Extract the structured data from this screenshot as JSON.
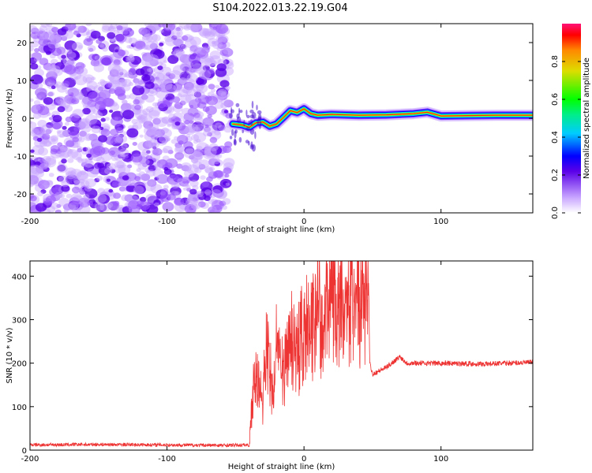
{
  "title": "S104.2022.013.22.19.G04",
  "charts": [
    {
      "type": "heatmap",
      "xlabel": "Height of straight line (km)",
      "ylabel": "Frequency (Hz)",
      "xlim": [
        -200,
        167
      ],
      "ylim": [
        -25,
        25
      ],
      "xticks": [
        -200,
        -100,
        0,
        100
      ],
      "yticks": [
        -20,
        -10,
        0,
        10,
        20
      ],
      "noise_region_x": [
        -200,
        -53
      ],
      "ridge": [
        {
          "x": -52,
          "y": -1.5
        },
        {
          "x": -45,
          "y": -1.8
        },
        {
          "x": -40,
          "y": -2.4
        },
        {
          "x": -35,
          "y": -1.2
        },
        {
          "x": -30,
          "y": -1.0
        },
        {
          "x": -25,
          "y": -2.1
        },
        {
          "x": -20,
          "y": -1.5
        },
        {
          "x": -15,
          "y": 0.2
        },
        {
          "x": -10,
          "y": 2.0
        },
        {
          "x": -5,
          "y": 1.5
        },
        {
          "x": 0,
          "y": 2.5
        },
        {
          "x": 5,
          "y": 1.2
        },
        {
          "x": 10,
          "y": 0.8
        },
        {
          "x": 20,
          "y": 1.0
        },
        {
          "x": 40,
          "y": 0.8
        },
        {
          "x": 60,
          "y": 0.9
        },
        {
          "x": 80,
          "y": 1.2
        },
        {
          "x": 90,
          "y": 1.6
        },
        {
          "x": 100,
          "y": 0.6
        },
        {
          "x": 120,
          "y": 0.7
        },
        {
          "x": 140,
          "y": 0.8
        },
        {
          "x": 167,
          "y": 0.8
        }
      ],
      "colorbar": {
        "label": "Normalized spectral amplitude",
        "range": [
          0,
          1
        ],
        "ticks": [
          "0.0",
          "0.2",
          "0.4",
          "0.6",
          "0.8"
        ],
        "tick_values": [
          0,
          0.2,
          0.4,
          0.6,
          0.8
        ]
      }
    },
    {
      "type": "line",
      "xlabel": "Height of straight line (km)",
      "ylabel": "SNR (10 * v/v)",
      "xlim": [
        -200,
        167
      ],
      "ylim": [
        0,
        435
      ],
      "xticks": [
        -200,
        -100,
        0,
        100
      ],
      "yticks": [
        0,
        100,
        200,
        300,
        400
      ],
      "series": [
        {
          "color": "#ee3333",
          "points": [
            {
              "x": -200,
              "y": 12
            },
            {
              "x": -150,
              "y": 13
            },
            {
              "x": -100,
              "y": 12
            },
            {
              "x": -60,
              "y": 11
            },
            {
              "x": -40,
              "y": 12
            },
            {
              "x": -38,
              "y": 120
            },
            {
              "x": -35,
              "y": 230
            },
            {
              "x": -30,
              "y": 120
            },
            {
              "x": -28,
              "y": 270
            },
            {
              "x": -22,
              "y": 150
            },
            {
              "x": -20,
              "y": 290
            },
            {
              "x": -15,
              "y": 200
            },
            {
              "x": -10,
              "y": 310
            },
            {
              "x": -5,
              "y": 250
            },
            {
              "x": 0,
              "y": 330
            },
            {
              "x": 5,
              "y": 300
            },
            {
              "x": 10,
              "y": 380
            },
            {
              "x": 15,
              "y": 345
            },
            {
              "x": 18,
              "y": 430
            },
            {
              "x": 25,
              "y": 395
            },
            {
              "x": 35,
              "y": 410
            },
            {
              "x": 47,
              "y": 415
            },
            {
              "x": 48,
              "y": 200
            },
            {
              "x": 50,
              "y": 175
            },
            {
              "x": 60,
              "y": 190
            },
            {
              "x": 70,
              "y": 215
            },
            {
              "x": 75,
              "y": 200
            },
            {
              "x": 100,
              "y": 200
            },
            {
              "x": 130,
              "y": 198
            },
            {
              "x": 167,
              "y": 202
            }
          ]
        }
      ]
    }
  ]
}
